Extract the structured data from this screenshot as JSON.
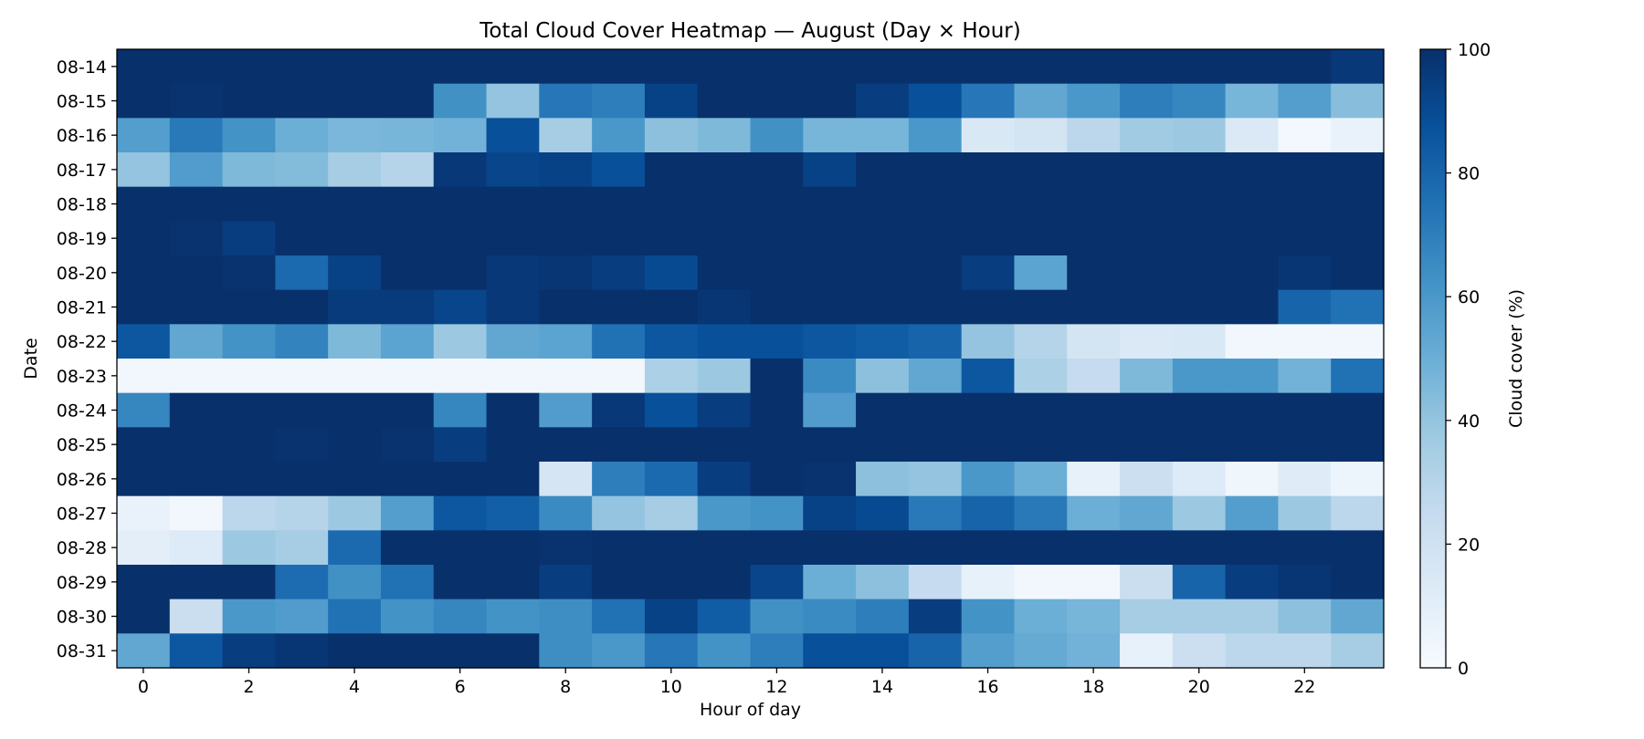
{
  "chart_data": {
    "type": "heatmap",
    "title": "Total Cloud Cover Heatmap — August (Day × Hour)",
    "xlabel": "Hour of day",
    "ylabel": "Date",
    "colorbar_label": "Cloud cover (%)",
    "colormap": "Blues",
    "colormap_low": "#f7fbff",
    "colormap_high": "#08306b",
    "vmin": 0,
    "vmax": 100,
    "colorbar_ticks": [
      0,
      20,
      40,
      60,
      80,
      100
    ],
    "x": [
      0,
      1,
      2,
      3,
      4,
      5,
      6,
      7,
      8,
      9,
      10,
      11,
      12,
      13,
      14,
      15,
      16,
      17,
      18,
      19,
      20,
      21,
      22,
      23
    ],
    "x_ticks": [
      0,
      2,
      4,
      6,
      8,
      10,
      12,
      14,
      16,
      18,
      20,
      22
    ],
    "y": [
      "08-14",
      "08-15",
      "08-16",
      "08-17",
      "08-18",
      "08-19",
      "08-20",
      "08-21",
      "08-22",
      "08-23",
      "08-24",
      "08-25",
      "08-26",
      "08-27",
      "08-28",
      "08-29",
      "08-30",
      "08-31"
    ],
    "values": [
      [
        100,
        100,
        100,
        100,
        100,
        100,
        100,
        100,
        100,
        100,
        100,
        100,
        100,
        100,
        100,
        100,
        100,
        100,
        100,
        100,
        100,
        100,
        100,
        97
      ],
      [
        100,
        99,
        100,
        100,
        100,
        100,
        63,
        40,
        73,
        70,
        93,
        100,
        100,
        100,
        95,
        88,
        73,
        53,
        60,
        70,
        67,
        47,
        57,
        43
      ],
      [
        57,
        72,
        62,
        50,
        46,
        47,
        48,
        88,
        35,
        60,
        42,
        45,
        63,
        47,
        47,
        60,
        15,
        18,
        28,
        37,
        38,
        14,
        2,
        7
      ],
      [
        40,
        58,
        45,
        44,
        35,
        30,
        97,
        92,
        93,
        88,
        100,
        100,
        100,
        93,
        100,
        100,
        100,
        100,
        100,
        100,
        100,
        100,
        100,
        100
      ],
      [
        100,
        100,
        100,
        100,
        100,
        100,
        100,
        100,
        100,
        100,
        100,
        100,
        100,
        100,
        100,
        100,
        100,
        100,
        100,
        100,
        100,
        100,
        100,
        100
      ],
      [
        100,
        99,
        95,
        100,
        100,
        100,
        100,
        100,
        100,
        100,
        100,
        100,
        100,
        100,
        100,
        100,
        100,
        100,
        100,
        100,
        100,
        100,
        100,
        100
      ],
      [
        100,
        100,
        99,
        78,
        93,
        100,
        100,
        97,
        98,
        95,
        90,
        100,
        100,
        100,
        100,
        100,
        95,
        55,
        100,
        100,
        100,
        100,
        98,
        100
      ],
      [
        100,
        100,
        100,
        100,
        96,
        96,
        92,
        97,
        100,
        100,
        100,
        98,
        100,
        100,
        100,
        100,
        100,
        100,
        100,
        100,
        100,
        100,
        80,
        75
      ],
      [
        85,
        53,
        62,
        68,
        45,
        55,
        38,
        53,
        55,
        75,
        85,
        88,
        88,
        85,
        83,
        80,
        40,
        30,
        18,
        14,
        15,
        3,
        3,
        3
      ],
      [
        3,
        3,
        3,
        3,
        3,
        3,
        3,
        3,
        3,
        3,
        33,
        38,
        100,
        65,
        42,
        53,
        85,
        33,
        25,
        45,
        60,
        60,
        48,
        75
      ],
      [
        67,
        100,
        100,
        100,
        100,
        100,
        67,
        100,
        58,
        97,
        88,
        95,
        100,
        58,
        100,
        100,
        100,
        100,
        100,
        100,
        100,
        100,
        100,
        100
      ],
      [
        100,
        100,
        100,
        99,
        100,
        99,
        95,
        100,
        100,
        100,
        100,
        100,
        100,
        100,
        100,
        100,
        100,
        100,
        100,
        100,
        100,
        100,
        100,
        100
      ],
      [
        100,
        100,
        100,
        100,
        100,
        100,
        100,
        100,
        17,
        70,
        78,
        95,
        100,
        99,
        42,
        40,
        60,
        50,
        8,
        22,
        13,
        4,
        12,
        5
      ],
      [
        7,
        3,
        28,
        30,
        38,
        57,
        85,
        82,
        65,
        40,
        35,
        60,
        62,
        93,
        90,
        72,
        80,
        72,
        50,
        53,
        38,
        57,
        38,
        28
      ],
      [
        10,
        13,
        38,
        35,
        78,
        100,
        100,
        100,
        99,
        100,
        100,
        100,
        100,
        100,
        100,
        100,
        100,
        100,
        100,
        100,
        100,
        100,
        100,
        100
      ],
      [
        100,
        100,
        100,
        77,
        63,
        75,
        100,
        100,
        95,
        100,
        100,
        100,
        92,
        50,
        42,
        25,
        8,
        3,
        3,
        23,
        80,
        95,
        98,
        100
      ],
      [
        100,
        23,
        60,
        58,
        75,
        62,
        67,
        62,
        64,
        75,
        93,
        83,
        63,
        65,
        70,
        95,
        62,
        50,
        47,
        35,
        35,
        35,
        42,
        53
      ],
      [
        53,
        85,
        95,
        98,
        100,
        100,
        100,
        100,
        64,
        60,
        73,
        62,
        70,
        88,
        88,
        80,
        57,
        52,
        48,
        8,
        22,
        28,
        28,
        35
      ]
    ]
  }
}
